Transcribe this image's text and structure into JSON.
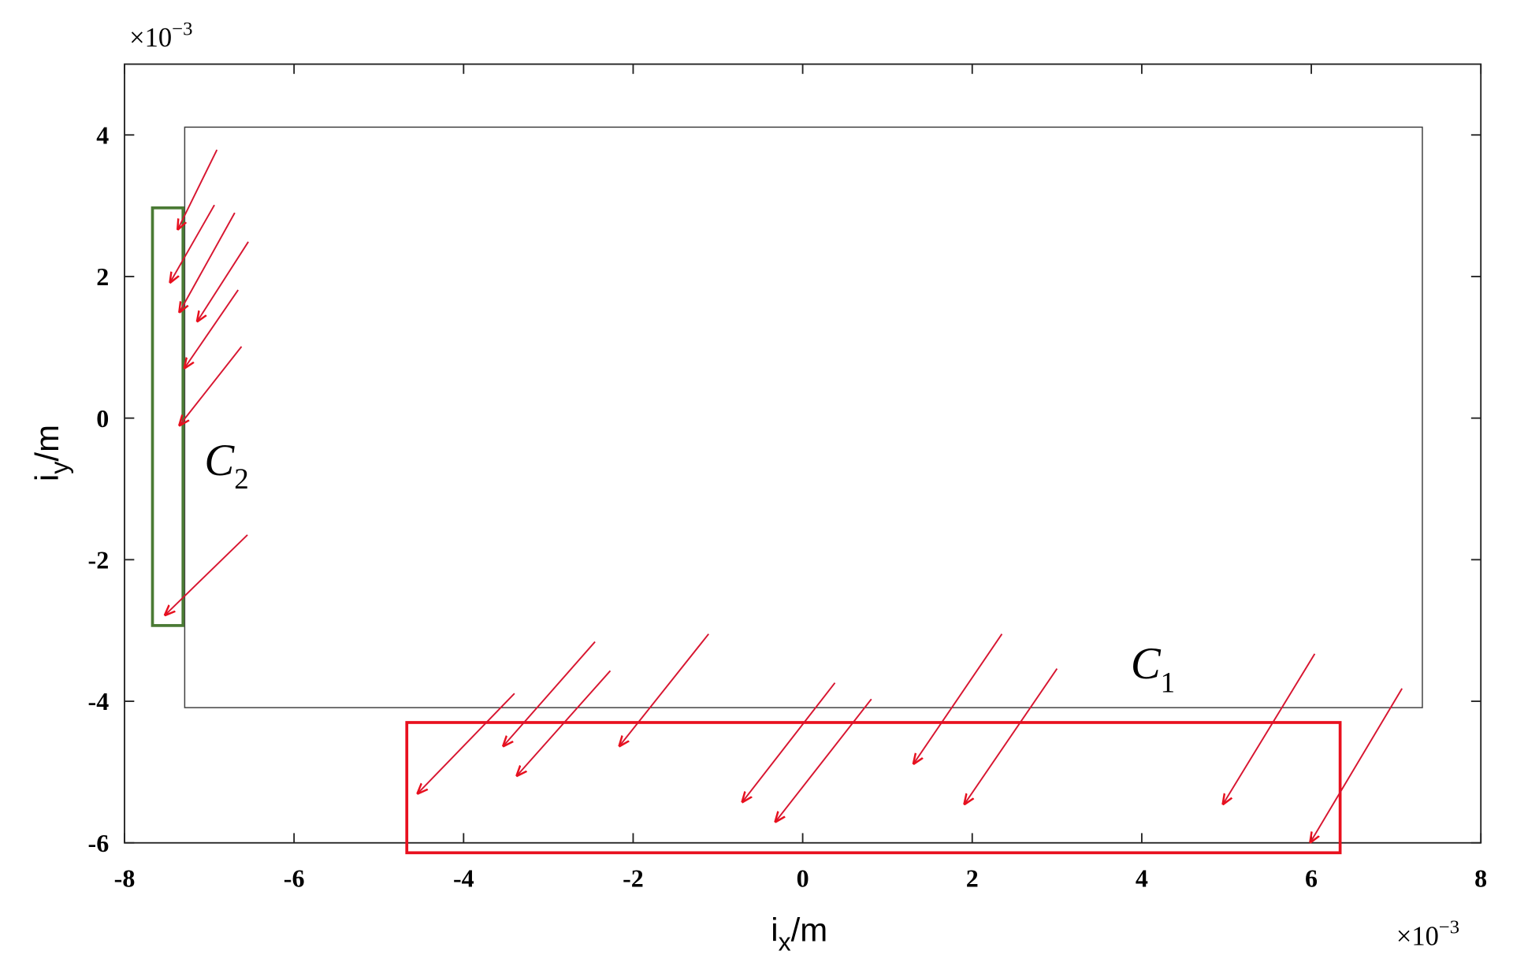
{
  "chart_data": {
    "type": "quiver",
    "xlim": [
      -8,
      8
    ],
    "ylim": [
      -6,
      5
    ],
    "xticks": [
      -8,
      -6,
      -4,
      -2,
      0,
      2,
      4,
      6,
      8
    ],
    "yticks": [
      -6,
      -4,
      -2,
      0,
      2,
      4
    ],
    "x_label": {
      "text": "i",
      "sub": "x",
      "suffix": "/m"
    },
    "y_label": {
      "text": "i",
      "sub": "y",
      "suffix": "/m"
    },
    "x_scale_label": {
      "base": "×10",
      "exponent": "−3"
    },
    "y_scale_label": {
      "base": "×10",
      "exponent": "−3"
    },
    "color": "#e8101e",
    "x": [
      -6.91,
      -6.94,
      -6.7,
      -6.54,
      -6.66,
      -6.62,
      -6.55,
      -3.4,
      -2.45,
      -2.27,
      -1.11,
      0.38,
      0.81,
      2.35,
      3.0,
      6.04,
      7.07
    ],
    "y": [
      3.79,
      3.01,
      2.9,
      2.49,
      1.81,
      1.01,
      -1.65,
      -3.89,
      -3.16,
      -3.57,
      -3.05,
      -3.74,
      -3.97,
      -3.05,
      -3.54,
      -3.33,
      -3.82
    ],
    "u": [
      -0.46,
      -0.52,
      -0.65,
      -0.6,
      -0.63,
      -0.73,
      -0.97,
      -1.14,
      -1.08,
      -1.1,
      -1.05,
      -1.09,
      -1.13,
      -1.04,
      -1.09,
      -1.08,
      -1.08
    ],
    "v": [
      -1.12,
      -1.09,
      -1.4,
      -1.12,
      -1.1,
      -1.11,
      -1.13,
      -1.41,
      -1.47,
      -1.48,
      -1.58,
      -1.68,
      -1.73,
      -1.83,
      -1.91,
      -2.12,
      -2.17
    ],
    "regions": [
      {
        "label": "C",
        "sub": "1",
        "color": "#404040",
        "xlim": [
          -7.29,
          7.31
        ],
        "ylim": [
          -4.09,
          4.11
        ]
      },
      {
        "label": "C",
        "sub": "2",
        "color": "#4a7a34",
        "xlim": [
          -7.67,
          -7.31
        ],
        "ylim": [
          -2.93,
          2.97
        ]
      },
      {
        "color": "#e8101e",
        "xlim": [
          -4.67,
          6.34
        ],
        "ylim": [
          -6.14,
          -4.3
        ]
      }
    ]
  }
}
